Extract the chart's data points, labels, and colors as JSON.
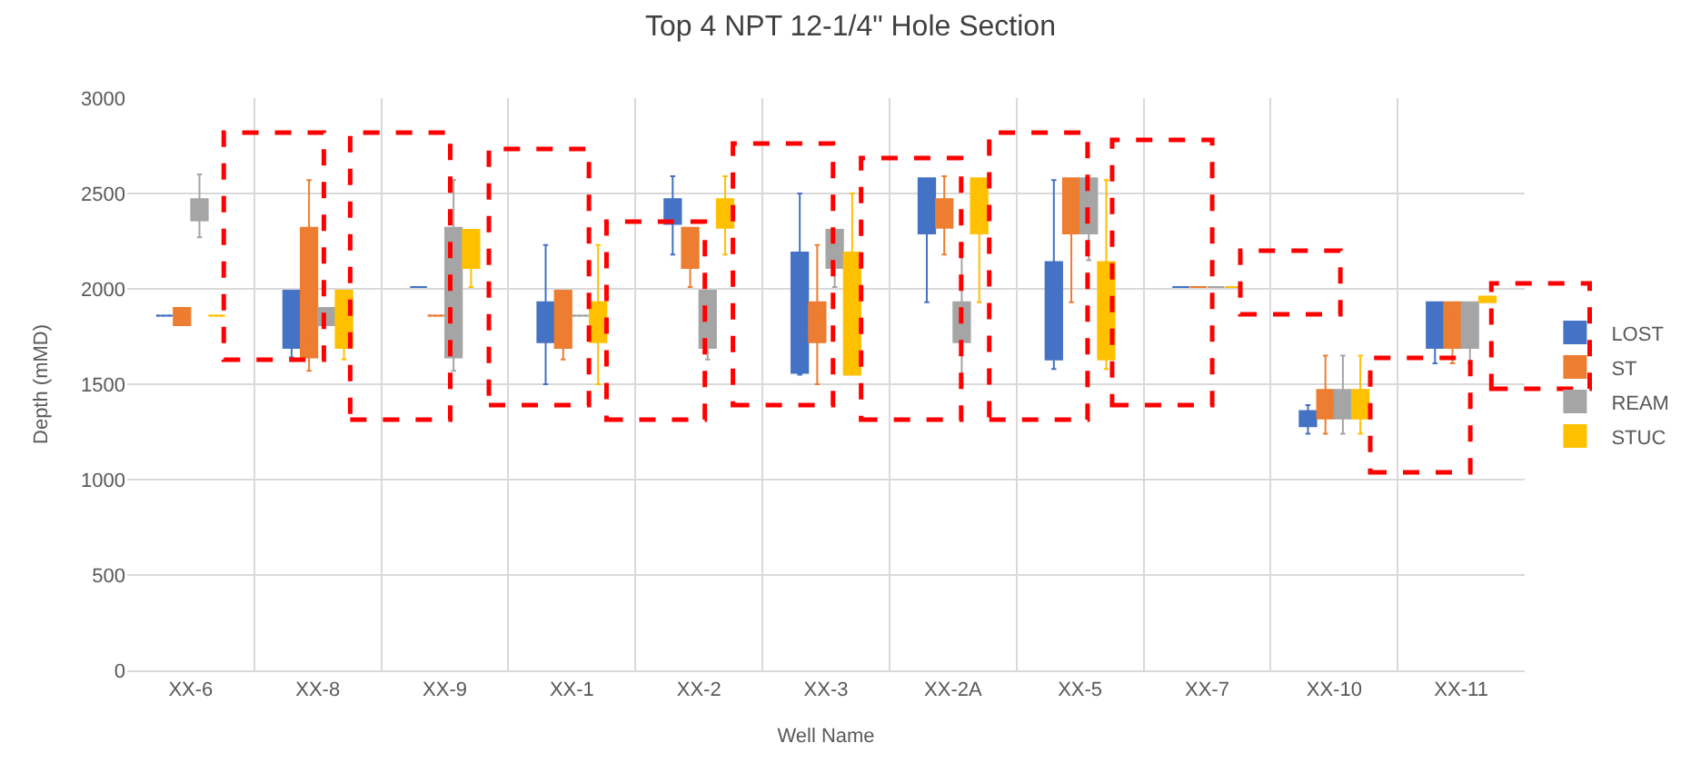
{
  "chart_data": {
    "type": "box",
    "title": "Top 4 NPT 12-1/4\" Hole Section",
    "xlabel": "Well Name",
    "ylabel": "Depth (mMD)",
    "categories": [
      "XX-6",
      "XX-8",
      "XX-9",
      "XX-1",
      "XX-2",
      "XX-3",
      "XX-2A",
      "XX-5",
      "XX-7",
      "XX-10",
      "XX-11"
    ],
    "ylim": [
      0,
      3000
    ],
    "yticks": [
      0,
      500,
      1000,
      1500,
      2000,
      2500,
      3000
    ],
    "grid": true,
    "legend": "right",
    "series": [
      {
        "name": "LOST",
        "color": "#4472c4",
        "boxes": [
          {
            "low": 1860,
            "q1": 1860,
            "median": 1860,
            "q3": 1860,
            "high": 1860,
            "mean": 1860
          },
          {
            "low": 1640,
            "q1": 1690,
            "median": 1830,
            "q3": 1990,
            "high": 1990,
            "mean": 1830
          },
          {
            "low": 2010,
            "q1": 2010,
            "median": 2010,
            "q3": 2010,
            "high": 2010,
            "mean": 2010
          },
          {
            "low": 1500,
            "q1": 1720,
            "median": 1860,
            "q3": 1930,
            "high": 2230,
            "mean": 1860
          },
          {
            "low": 2180,
            "q1": 2340,
            "median": 2400,
            "q3": 2470,
            "high": 2590,
            "mean": 2400
          },
          {
            "low": 1550,
            "q1": 1560,
            "median": 1820,
            "q3": 2190,
            "high": 2500,
            "mean": 1930
          },
          {
            "low": 1930,
            "q1": 2290,
            "median": 2470,
            "q3": 2580,
            "high": 2580,
            "mean": 2470
          },
          {
            "low": 1580,
            "q1": 1630,
            "median": 1870,
            "q3": 2140,
            "high": 2570,
            "mean": 1870
          },
          {
            "low": 2010,
            "q1": 2010,
            "median": 2010,
            "q3": 2010,
            "high": 2010,
            "mean": 2010
          },
          {
            "low": 1240,
            "q1": 1280,
            "median": 1340,
            "q3": 1360,
            "high": 1390,
            "mean": 1340
          },
          {
            "low": 1610,
            "q1": 1690,
            "median": 1860,
            "q3": 1930,
            "high": 1930,
            "mean": 1860
          }
        ]
      },
      {
        "name": "ST",
        "color": "#ed7d31",
        "boxes": [
          {
            "low": 1810,
            "q1": 1810,
            "median": 1860,
            "q3": 1900,
            "high": 1900,
            "mean": 1860
          },
          {
            "low": 1570,
            "q1": 1640,
            "median": 1740,
            "q3": 2320,
            "high": 2570,
            "mean": 1950
          },
          {
            "low": 1860,
            "q1": 1860,
            "median": 1860,
            "q3": 1860,
            "high": 1860,
            "mean": 1860
          },
          {
            "low": 1630,
            "q1": 1690,
            "median": 1830,
            "q3": 1990,
            "high": 1990,
            "mean": 1830
          },
          {
            "low": 2010,
            "q1": 2110,
            "median": 2220,
            "q3": 2320,
            "high": 2320,
            "mean": 2220
          },
          {
            "low": 1500,
            "q1": 1720,
            "median": 1860,
            "q3": 1930,
            "high": 2230,
            "mean": 1860
          },
          {
            "low": 2180,
            "q1": 2320,
            "median": 2400,
            "q3": 2470,
            "high": 2590,
            "mean": 2400
          },
          {
            "low": 1930,
            "q1": 2290,
            "median": 2470,
            "q3": 2580,
            "high": 2580,
            "mean": 2470
          },
          {
            "low": 2010,
            "q1": 2010,
            "median": 2010,
            "q3": 2010,
            "high": 2010,
            "mean": 2010
          },
          {
            "low": 1240,
            "q1": 1320,
            "median": 1400,
            "q3": 1470,
            "high": 1650,
            "mean": 1400
          },
          {
            "low": 1610,
            "q1": 1690,
            "median": 1860,
            "q3": 1930,
            "high": 1930,
            "mean": 1860
          }
        ]
      },
      {
        "name": "REAM",
        "color": "#a5a5a5",
        "boxes": [
          {
            "low": 2270,
            "q1": 2360,
            "median": 2400,
            "q3": 2470,
            "high": 2600,
            "mean": 2360
          },
          {
            "low": 1810,
            "q1": 1810,
            "median": 1860,
            "q3": 1900,
            "high": 1900,
            "mean": 1860
          },
          {
            "low": 1570,
            "q1": 1640,
            "median": 1740,
            "q3": 2320,
            "high": 2570,
            "mean": 1950
          },
          {
            "low": 1860,
            "q1": 1860,
            "median": 1860,
            "q3": 1860,
            "high": 1860,
            "mean": 1860
          },
          {
            "low": 1630,
            "q1": 1690,
            "median": 1850,
            "q3": 1990,
            "high": 1990,
            "mean": 1850
          },
          {
            "low": 2010,
            "q1": 2110,
            "median": 2220,
            "q3": 2310,
            "high": 2310,
            "mean": 2220
          },
          {
            "low": 1500,
            "q1": 1720,
            "median": 1850,
            "q3": 1930,
            "high": 2230,
            "mean": 1850
          },
          {
            "low": 2150,
            "q1": 2290,
            "median": 2450,
            "q3": 2580,
            "high": 2580,
            "mean": 2450
          },
          {
            "low": 2010,
            "q1": 2010,
            "median": 2010,
            "q3": 2010,
            "high": 2010,
            "mean": 2010
          },
          {
            "low": 1240,
            "q1": 1320,
            "median": 1400,
            "q3": 1470,
            "high": 1650,
            "mean": 1400
          },
          {
            "low": 1610,
            "q1": 1690,
            "median": 1860,
            "q3": 1930,
            "high": 1930,
            "mean": 1860
          }
        ]
      },
      {
        "name": "STUC",
        "color": "#ffc000",
        "boxes": [
          {
            "low": 1860,
            "q1": 1860,
            "median": 1860,
            "q3": 1860,
            "high": 1860,
            "mean": 1860
          },
          {
            "low": 1630,
            "q1": 1690,
            "median": 1830,
            "q3": 1990,
            "high": 1990,
            "mean": 1830
          },
          {
            "low": 2010,
            "q1": 2110,
            "median": 2230,
            "q3": 2310,
            "high": 2310,
            "mean": 2230
          },
          {
            "low": 1500,
            "q1": 1720,
            "median": 1850,
            "q3": 1930,
            "high": 2230,
            "mean": 1850
          },
          {
            "low": 2180,
            "q1": 2320,
            "median": 2390,
            "q3": 2470,
            "high": 2590,
            "mean": 2390
          },
          {
            "low": 1550,
            "q1": 1550,
            "median": 1820,
            "q3": 2190,
            "high": 2500,
            "mean": 1930
          },
          {
            "low": 1930,
            "q1": 2290,
            "median": 2450,
            "q3": 2580,
            "high": 2580,
            "mean": 2450
          },
          {
            "low": 1580,
            "q1": 1630,
            "median": 1870,
            "q3": 2140,
            "high": 2570,
            "mean": 1870
          },
          {
            "low": 2010,
            "q1": 2010,
            "median": 2010,
            "q3": 2010,
            "high": 2010,
            "mean": 2010
          },
          {
            "low": 1240,
            "q1": 1320,
            "median": 1400,
            "q3": 1470,
            "high": 1650,
            "mean": 1400
          },
          {
            "low": 1930,
            "q1": 1930,
            "median": 1950,
            "q3": 1960,
            "high": 1960,
            "mean": 1950
          }
        ]
      }
    ]
  }
}
